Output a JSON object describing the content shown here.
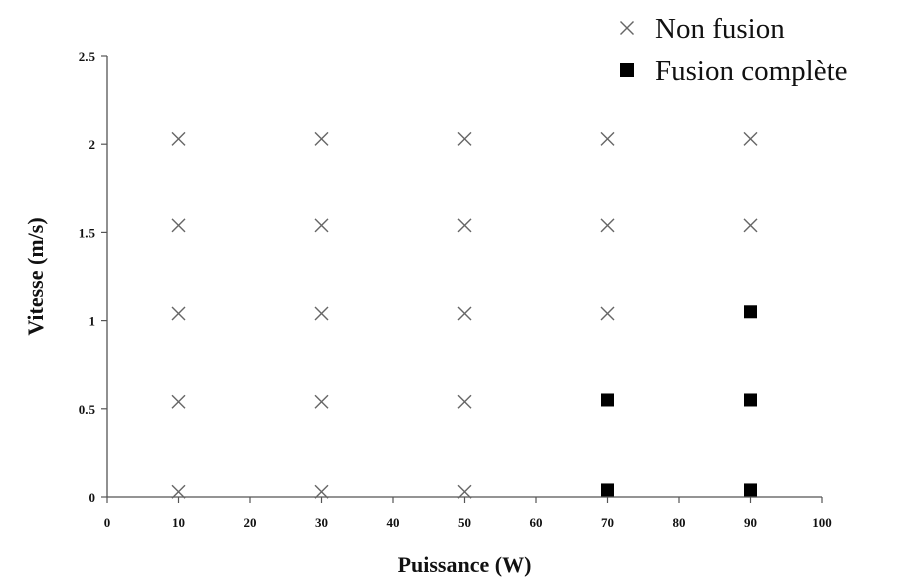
{
  "chart_data": {
    "type": "scatter",
    "xlabel": "Puissance (W)",
    "ylabel": "Vitesse (m/s)",
    "xlim": [
      0,
      100
    ],
    "ylim": [
      0,
      2.5
    ],
    "x_ticks": [
      "0",
      "10",
      "20",
      "30",
      "40",
      "50",
      "60",
      "70",
      "80",
      "90",
      "100"
    ],
    "y_ticks": [
      "0",
      "0.5",
      "1",
      "1.5",
      "2",
      "2.5"
    ],
    "grid": false,
    "legend_position": "top-right",
    "series": [
      {
        "name": "Non fusion",
        "marker": "x",
        "color": "#666666",
        "points": [
          {
            "x": 10,
            "y": 0.03
          },
          {
            "x": 10,
            "y": 0.54
          },
          {
            "x": 10,
            "y": 1.04
          },
          {
            "x": 10,
            "y": 1.54
          },
          {
            "x": 10,
            "y": 2.03
          },
          {
            "x": 30,
            "y": 0.03
          },
          {
            "x": 30,
            "y": 0.54
          },
          {
            "x": 30,
            "y": 1.04
          },
          {
            "x": 30,
            "y": 1.54
          },
          {
            "x": 30,
            "y": 2.03
          },
          {
            "x": 50,
            "y": 0.03
          },
          {
            "x": 50,
            "y": 0.54
          },
          {
            "x": 50,
            "y": 1.04
          },
          {
            "x": 50,
            "y": 1.54
          },
          {
            "x": 50,
            "y": 2.03
          },
          {
            "x": 70,
            "y": 1.04
          },
          {
            "x": 70,
            "y": 1.54
          },
          {
            "x": 70,
            "y": 2.03
          },
          {
            "x": 90,
            "y": 1.54
          },
          {
            "x": 90,
            "y": 2.03
          }
        ]
      },
      {
        "name": "Fusion complète",
        "marker": "square",
        "color": "#000000",
        "points": [
          {
            "x": 70,
            "y": 0.04
          },
          {
            "x": 70,
            "y": 0.55
          },
          {
            "x": 90,
            "y": 0.04
          },
          {
            "x": 90,
            "y": 0.55
          },
          {
            "x": 90,
            "y": 1.05
          }
        ]
      }
    ]
  }
}
